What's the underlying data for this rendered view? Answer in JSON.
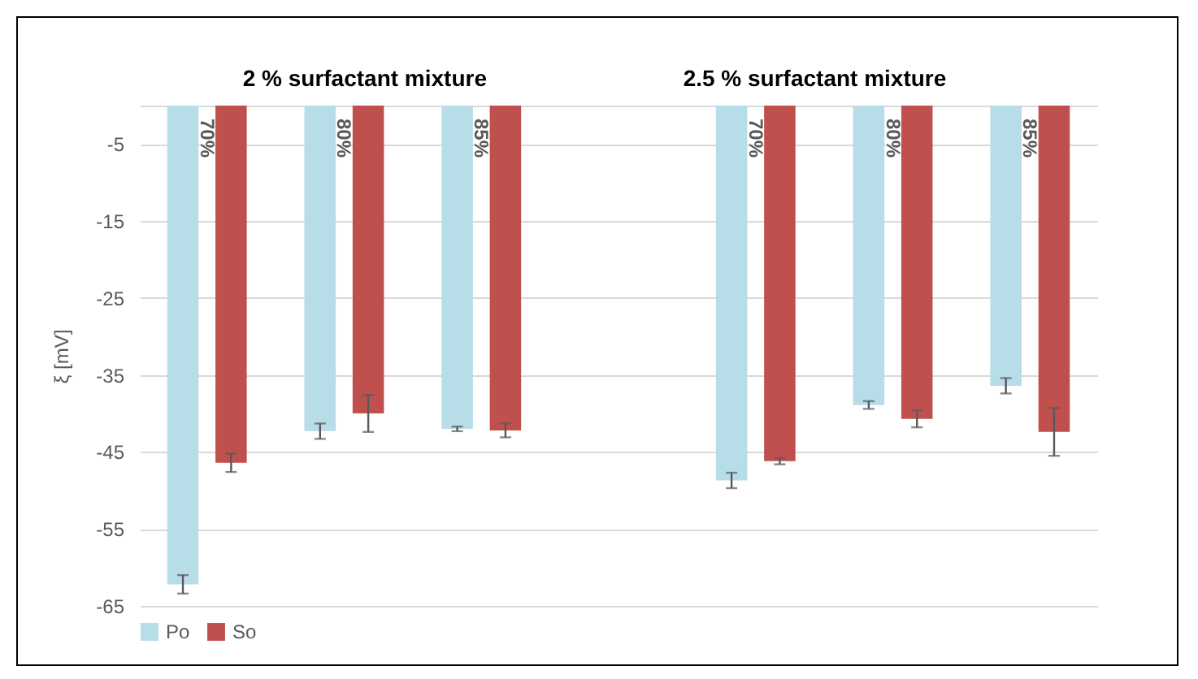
{
  "chart_data": {
    "type": "bar",
    "ylabel": "ξ [mV]",
    "annotations": [
      "2 % surfactant mixture",
      "2.5  % surfactant mixture"
    ],
    "categories": [
      "70%",
      "80%",
      "85%",
      null,
      "70%",
      "80%",
      "85%"
    ],
    "series": [
      {
        "name": "Po",
        "color": "#b7dde8",
        "values": [
          -62.2,
          -42.3,
          -42.0,
          null,
          -48.7,
          -38.9,
          -36.4
        ],
        "errors": [
          1.2,
          1.0,
          0.3,
          null,
          1.0,
          0.5,
          1.0
        ]
      },
      {
        "name": "So",
        "color": "#c0504d",
        "values": [
          -46.4,
          -40.0,
          -42.2,
          null,
          -46.2,
          -40.7,
          -42.4
        ],
        "errors": [
          1.2,
          2.4,
          0.9,
          null,
          0.4,
          1.1,
          3.1
        ]
      }
    ],
    "ylim": [
      -65,
      0
    ],
    "yticks": [
      {
        "value": 0,
        "label": null
      },
      -5,
      -15,
      -25,
      -35,
      -45,
      -55,
      -65
    ],
    "grid": "y",
    "legend": "bottom"
  }
}
